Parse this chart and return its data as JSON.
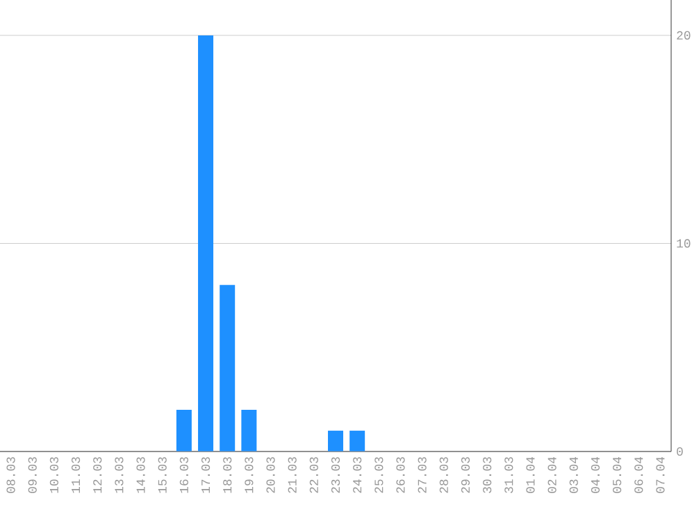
{
  "chart_data": {
    "type": "bar",
    "categories": [
      "08.03",
      "09.03",
      "10.03",
      "11.03",
      "12.03",
      "13.03",
      "14.03",
      "15.03",
      "16.03",
      "17.03",
      "18.03",
      "19.03",
      "20.03",
      "21.03",
      "22.03",
      "23.03",
      "24.03",
      "25.03",
      "26.03",
      "27.03",
      "28.03",
      "29.03",
      "30.03",
      "31.03",
      "01.04",
      "02.04",
      "03.04",
      "04.04",
      "05.04",
      "06.04",
      "07.04"
    ],
    "values": [
      0,
      0,
      0,
      0,
      0,
      0,
      0,
      0,
      2,
      20,
      8,
      2,
      0,
      0,
      0,
      1,
      1,
      0,
      0,
      0,
      0,
      0,
      0,
      0,
      0,
      0,
      0,
      0,
      0,
      0,
      0
    ],
    "color": "#1e90ff",
    "ylim": [
      0,
      21.7
    ],
    "yticks": [
      0,
      10,
      20
    ],
    "grid": "y"
  }
}
